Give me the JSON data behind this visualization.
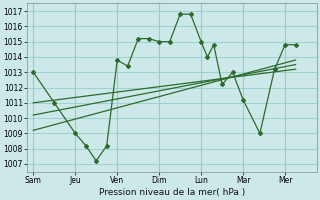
{
  "bg_color": "#cce8e8",
  "grid_color": "#99cccc",
  "line_color": "#2d6b2d",
  "title": "Pression niveau de la mer( hPa )",
  "xtick_labels": [
    "Sam",
    "Jeu",
    "Ven",
    "Dim",
    "Lun",
    "Mar",
    "Mer"
  ],
  "xtick_positions": [
    0,
    2,
    4,
    6,
    8,
    10,
    12
  ],
  "ylim": [
    1006.5,
    1017.5
  ],
  "yticks": [
    1007,
    1008,
    1009,
    1010,
    1011,
    1012,
    1013,
    1014,
    1015,
    1016,
    1017
  ],
  "xlim": [
    -0.3,
    13.5
  ],
  "main_x": [
    0,
    1.0,
    2.0,
    2.5,
    3.0,
    3.5,
    4.0,
    4.5,
    5.0,
    5.5,
    6.0,
    6.5,
    7.0,
    7.5,
    8.0,
    8.3,
    8.6,
    9.0,
    9.5,
    10.0,
    10.8,
    11.5,
    12.0,
    12.5
  ],
  "main_y": [
    1013,
    1011,
    1009,
    1008.2,
    1007.2,
    1008.2,
    1013.8,
    1013.4,
    1015.2,
    1015.2,
    1015.0,
    1015.0,
    1016.8,
    1016.8,
    1015.0,
    1014.0,
    1014.8,
    1012.2,
    1013.0,
    1011.2,
    1009.0,
    1013.2,
    1014.8,
    1014.8
  ],
  "trend1_x": [
    0.0,
    12.5
  ],
  "trend1_y": [
    1011.0,
    1013.2
  ],
  "trend2_x": [
    0.0,
    12.5
  ],
  "trend2_y": [
    1010.2,
    1013.5
  ],
  "trend3_x": [
    0.0,
    12.5
  ],
  "trend3_y": [
    1009.2,
    1013.8
  ]
}
